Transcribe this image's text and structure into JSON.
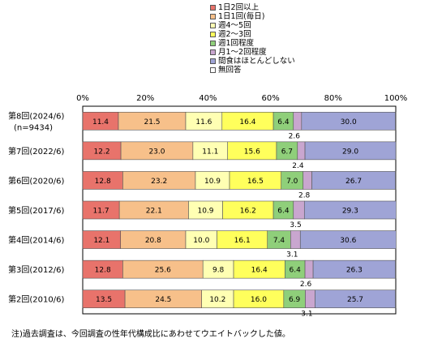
{
  "legend": [
    {
      "label": "1日2回以上",
      "color": "#e8736b"
    },
    {
      "label": "1日1回(毎日)",
      "color": "#f7c08a"
    },
    {
      "label": "週4～5回",
      "color": "#ffffb3"
    },
    {
      "label": "週2～3回",
      "color": "#ffff5c"
    },
    {
      "label": "週1回程度",
      "color": "#8fcf7a"
    },
    {
      "label": "月1～2回程度",
      "color": "#c9a6cf"
    },
    {
      "label": "間食はほとんどしない",
      "color": "#9fa4d6"
    },
    {
      "label": "無回答",
      "color": "#ffffff"
    }
  ],
  "note": "注)過去調査は、今回調査の性年代構成比にあわせてウエイトバックした値。",
  "chart_data": {
    "type": "bar",
    "orientation": "horizontal",
    "stacked": true,
    "normalized": true,
    "x_ticks": [
      "0%",
      "20%",
      "40%",
      "60%",
      "80%",
      "100%"
    ],
    "xlim": [
      0,
      100
    ],
    "legend_position": "top-right",
    "categories": [
      "第8回(2024/6)",
      "第7回(2022/6)",
      "第6回(2020/6)",
      "第5回(2017/6)",
      "第4回(2014/6)",
      "第3回(2012/6)",
      "第2回(2010/6)"
    ],
    "category_sublabels": [
      "(n=9434)",
      "",
      "",
      "",
      "",
      "",
      ""
    ],
    "series": [
      {
        "name": "1日2回以上",
        "values": [
          11.4,
          12.2,
          12.8,
          11.7,
          12.1,
          12.8,
          13.5
        ]
      },
      {
        "name": "1日1回(毎日)",
        "values": [
          21.5,
          23.0,
          23.2,
          22.1,
          20.8,
          25.6,
          24.5
        ]
      },
      {
        "name": "週4～5回",
        "values": [
          11.6,
          11.1,
          10.9,
          10.9,
          10.0,
          9.8,
          10.2
        ]
      },
      {
        "name": "週2～3回",
        "values": [
          16.4,
          15.6,
          16.5,
          16.2,
          16.1,
          16.4,
          16.0
        ]
      },
      {
        "name": "週1回程度",
        "values": [
          6.4,
          6.7,
          7.0,
          6.4,
          7.4,
          6.4,
          6.9
        ]
      },
      {
        "name": "月1～2回程度",
        "values": [
          2.6,
          2.4,
          2.8,
          3.5,
          3.1,
          2.6,
          3.1
        ]
      },
      {
        "name": "間食はほとんどしない",
        "values": [
          30.0,
          29.0,
          26.7,
          29.3,
          30.6,
          26.3,
          25.7
        ]
      },
      {
        "name": "無回答",
        "values": [
          0,
          0,
          0,
          0,
          0,
          0,
          0
        ]
      }
    ],
    "inside_label_series": [
      0,
      1,
      2,
      3,
      4,
      6
    ],
    "below_label_series": 5
  }
}
